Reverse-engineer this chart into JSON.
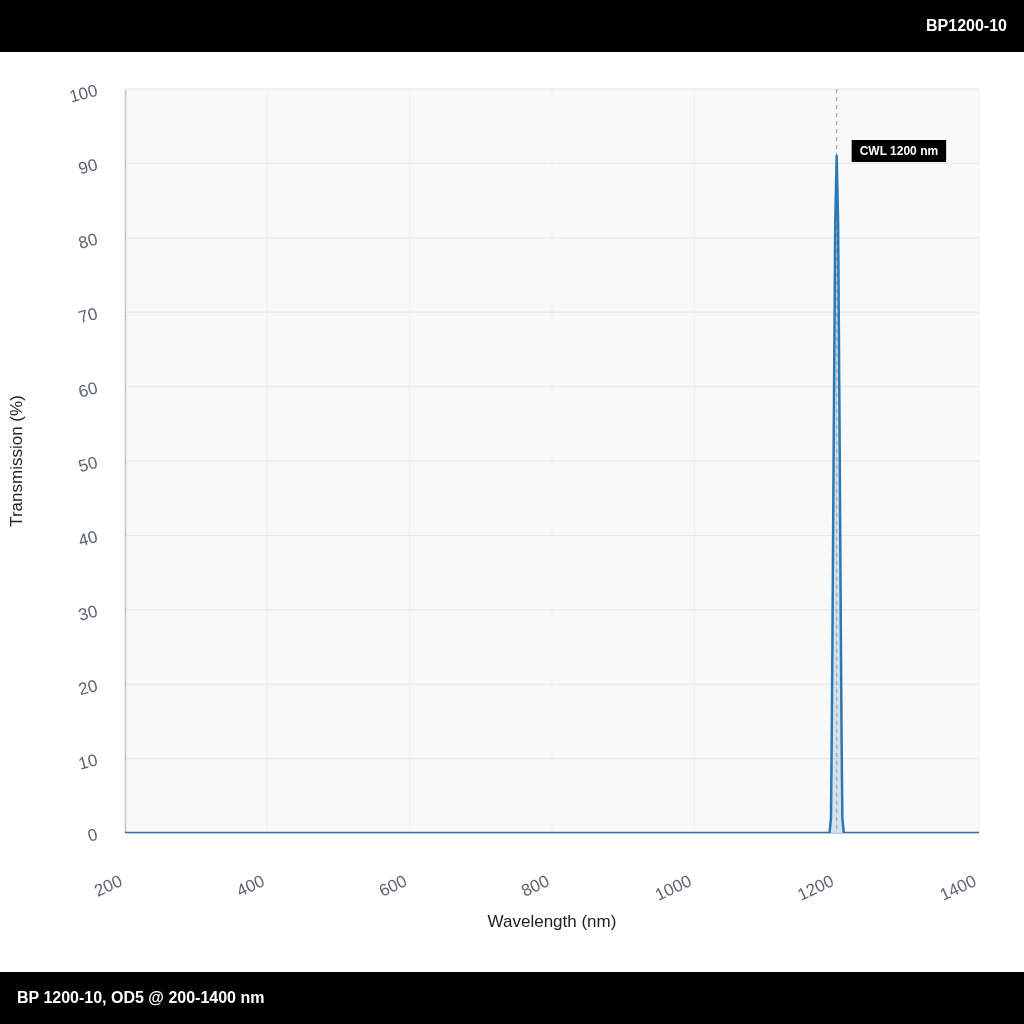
{
  "chart_data": {
    "type": "area",
    "title": "BP1200-10",
    "xlabel": "Wavelength (nm)",
    "ylabel": "Transmission (%)",
    "annotations": [
      "BP 1200-10, OD5 @ 200-1400 nm"
    ],
    "x": [
      200,
      1190,
      1192,
      1193,
      1194,
      1196,
      1198,
      1200,
      1202,
      1204,
      1206,
      1207,
      1208,
      1210,
      1400
    ],
    "values": [
      0,
      0,
      2,
      12,
      25,
      55,
      82,
      91,
      82,
      55,
      25,
      12,
      2,
      0,
      0
    ],
    "color": "#2a78b5",
    "xlim": [
      200,
      1400
    ],
    "xticks": [
      200,
      400,
      600,
      800,
      1000,
      1200,
      1400
    ],
    "ylim": [
      0,
      100
    ],
    "yticks": [
      0,
      10,
      20,
      30,
      40,
      50,
      60,
      70,
      80,
      90,
      100
    ],
    "grid": true,
    "ref_lines": [
      {
        "axis": "x",
        "value": 1200,
        "label": "CWL 1200 nm",
        "color": "#9a9a9a",
        "line_style": "dashed"
      }
    ]
  }
}
